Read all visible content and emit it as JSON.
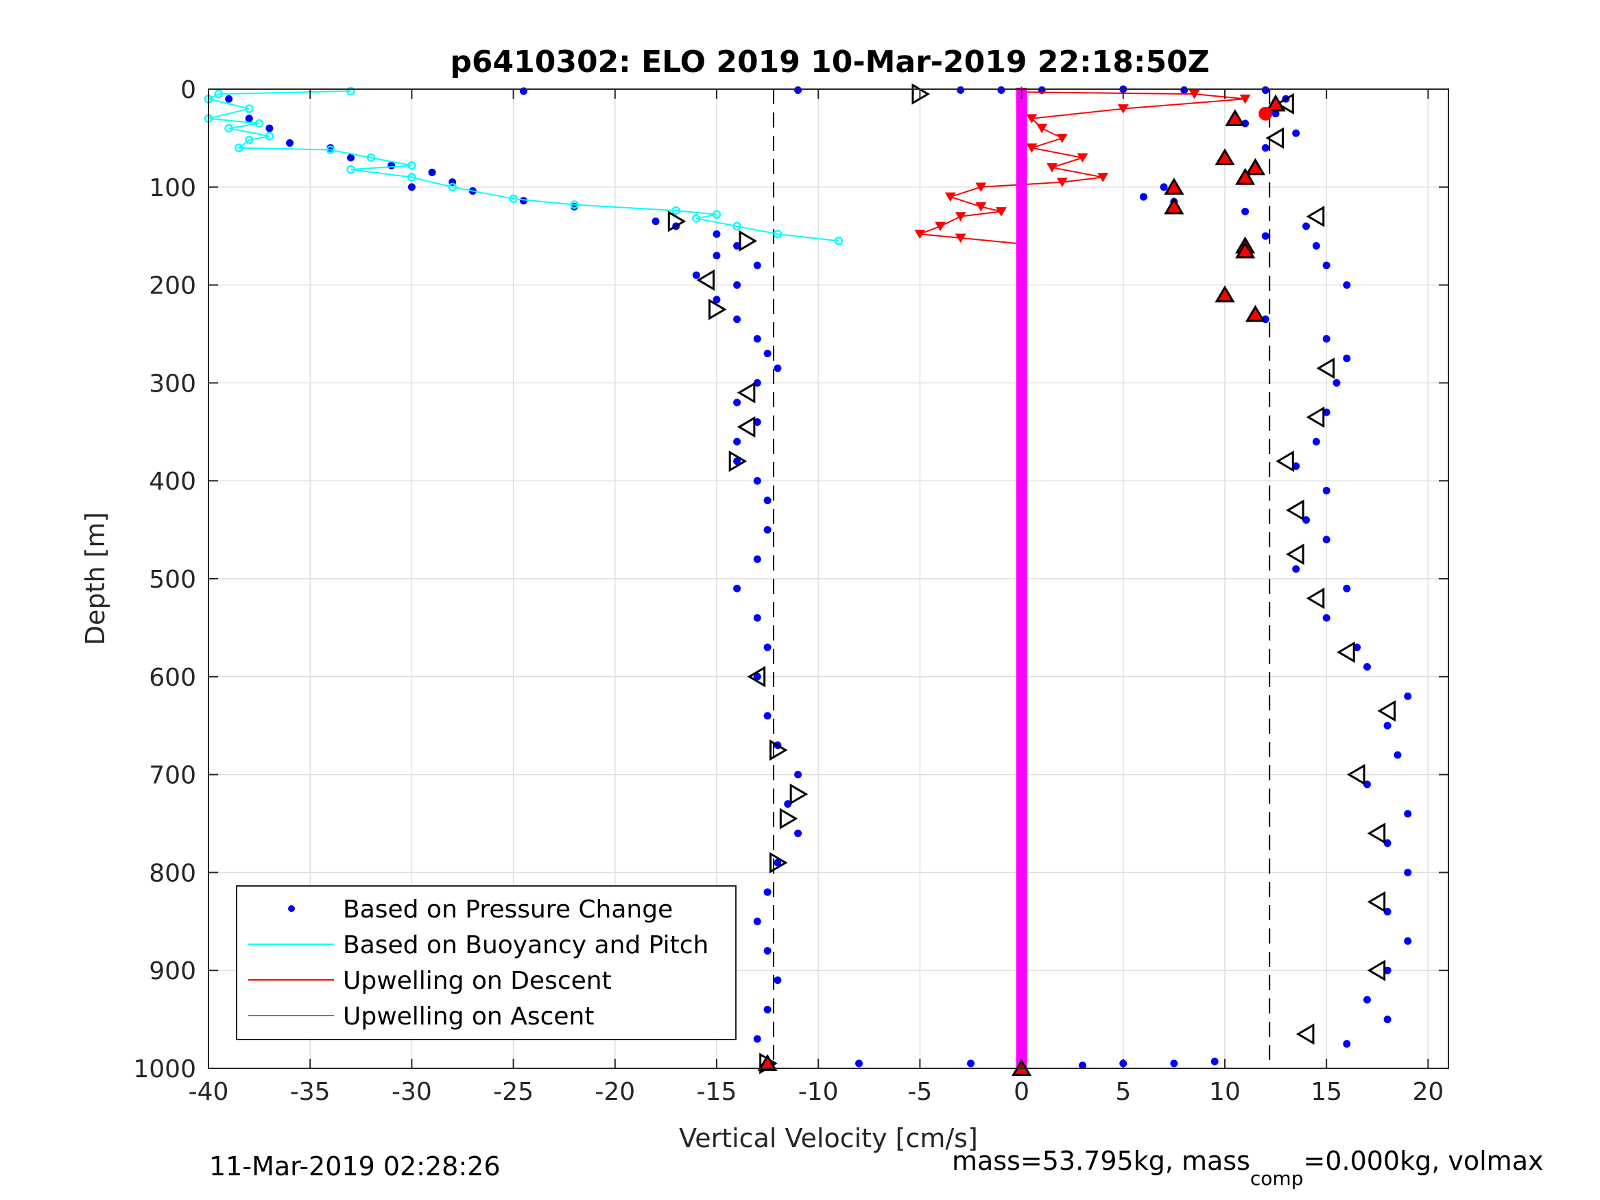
{
  "chart_data": {
    "type": "scatter",
    "title": "p6410302: ELO 2019 10-Mar-2019 22:18:50Z",
    "xlabel": "Vertical Velocity [cm/s]",
    "ylabel": "Depth [m]",
    "xlim": [
      -40,
      21
    ],
    "ylim": [
      0,
      1000
    ],
    "y_reversed": true,
    "grid": true,
    "x_ticks": [
      "-40",
      "-35",
      "-30",
      "-25",
      "-20",
      "-15",
      "-10",
      "-5",
      "0",
      "5",
      "10",
      "15",
      "20"
    ],
    "y_ticks": [
      "0",
      "100",
      "200",
      "300",
      "400",
      "500",
      "600",
      "700",
      "800",
      "900",
      "1000"
    ],
    "legend": {
      "placement": "bottom-left",
      "entries": [
        "Based on Pressure Change",
        "Based on Buoyancy and Pitch",
        "Upwelling on Descent",
        "Upwelling on Ascent"
      ]
    },
    "reference_lines_x": [
      -12.2,
      12.2
    ],
    "colors": {
      "pressure": "#0000ff",
      "buoyancy": "#00ffff",
      "upwelling_descent": "#ff0000",
      "upwelling_ascent": "#ff00ff",
      "marker_fill": "#ff0000"
    },
    "series": [
      {
        "name": "Based on Pressure Change",
        "style": "dots",
        "color": "#0000ff",
        "points": [
          [
            -39,
            10
          ],
          [
            -38,
            30
          ],
          [
            -37,
            40
          ],
          [
            -36,
            55
          ],
          [
            -34,
            60
          ],
          [
            -33,
            70
          ],
          [
            -31,
            78
          ],
          [
            -29,
            85
          ],
          [
            -28,
            95
          ],
          [
            -30,
            100
          ],
          [
            -27,
            104
          ],
          [
            -24.5,
            114
          ],
          [
            -22,
            120
          ],
          [
            -18,
            135
          ],
          [
            -17,
            140
          ],
          [
            -15,
            148
          ],
          [
            -14,
            160
          ],
          [
            -15,
            170
          ],
          [
            -13,
            180
          ],
          [
            -16,
            190
          ],
          [
            -14,
            200
          ],
          [
            -15,
            215
          ],
          [
            -14,
            235
          ],
          [
            -13,
            255
          ],
          [
            -12.5,
            270
          ],
          [
            -12,
            285
          ],
          [
            -13,
            300
          ],
          [
            -14,
            320
          ],
          [
            -13,
            340
          ],
          [
            -14,
            360
          ],
          [
            -14,
            380
          ],
          [
            -13,
            400
          ],
          [
            -12.5,
            420
          ],
          [
            -12.5,
            450
          ],
          [
            -13,
            480
          ],
          [
            -14,
            510
          ],
          [
            -13,
            540
          ],
          [
            -12.5,
            570
          ],
          [
            -13,
            600
          ],
          [
            -12.5,
            640
          ],
          [
            -12,
            670
          ],
          [
            -11,
            700
          ],
          [
            -11.5,
            730
          ],
          [
            -11,
            760
          ],
          [
            -12,
            790
          ],
          [
            -12.5,
            820
          ],
          [
            -13,
            850
          ],
          [
            -12.5,
            880
          ],
          [
            -12,
            910
          ],
          [
            -12.5,
            940
          ],
          [
            -13,
            970
          ],
          [
            -12.5,
            995
          ],
          [
            -24.5,
            2
          ],
          [
            -11,
            1
          ],
          [
            -3,
            1
          ],
          [
            -1,
            1
          ],
          [
            1,
            1
          ],
          [
            5,
            0
          ],
          [
            8,
            1
          ],
          [
            12,
            1
          ],
          [
            -8,
            995
          ],
          [
            -2.5,
            995
          ],
          [
            3,
            997
          ],
          [
            5,
            995
          ],
          [
            7.5,
            995
          ],
          [
            9.5,
            993
          ],
          [
            13,
            10
          ],
          [
            12.5,
            25
          ],
          [
            11,
            35
          ],
          [
            13.5,
            45
          ],
          [
            12,
            60
          ],
          [
            10,
            70
          ],
          [
            11,
            90
          ],
          [
            7,
            100
          ],
          [
            6,
            110
          ],
          [
            7.5,
            115
          ],
          [
            11,
            125
          ],
          [
            12,
            150
          ],
          [
            11,
            165
          ],
          [
            10,
            210
          ],
          [
            12,
            235
          ],
          [
            15,
            255
          ],
          [
            16,
            275
          ],
          [
            15.5,
            300
          ],
          [
            15,
            330
          ],
          [
            14.5,
            360
          ],
          [
            13.5,
            385
          ],
          [
            15,
            410
          ],
          [
            14,
            440
          ],
          [
            15,
            460
          ],
          [
            13.5,
            490
          ],
          [
            16,
            510
          ],
          [
            15,
            540
          ],
          [
            16.5,
            570
          ],
          [
            17,
            590
          ],
          [
            19,
            620
          ],
          [
            18,
            650
          ],
          [
            18.5,
            680
          ],
          [
            17,
            710
          ],
          [
            19,
            740
          ],
          [
            18,
            770
          ],
          [
            19,
            800
          ],
          [
            18,
            840
          ],
          [
            19,
            870
          ],
          [
            18,
            900
          ],
          [
            17,
            930
          ],
          [
            18,
            950
          ],
          [
            16,
            975
          ],
          [
            14,
            140
          ],
          [
            14.5,
            160
          ],
          [
            15,
            180
          ],
          [
            16,
            200
          ]
        ]
      },
      {
        "name": "Based on Buoyancy and Pitch",
        "style": "line-circles",
        "color": "#00ffff",
        "points": [
          [
            -33,
            2
          ],
          [
            -39.5,
            5
          ],
          [
            -40,
            10
          ],
          [
            -38,
            20
          ],
          [
            -40,
            30
          ],
          [
            -37.5,
            35
          ],
          [
            -39,
            40
          ],
          [
            -37,
            48
          ],
          [
            -38,
            52
          ],
          [
            -38.5,
            60
          ],
          [
            -34,
            62
          ],
          [
            -32,
            70
          ],
          [
            -30,
            78
          ],
          [
            -33,
            82
          ],
          [
            -30,
            90
          ],
          [
            -28,
            100
          ],
          [
            -25,
            112
          ],
          [
            -22,
            118
          ],
          [
            -17,
            124
          ],
          [
            -15,
            128
          ],
          [
            -16,
            132
          ],
          [
            -14,
            140
          ],
          [
            -12,
            148
          ],
          [
            -9,
            155
          ]
        ]
      },
      {
        "name": "Upwelling on Descent",
        "style": "line-triangles-down",
        "color": "#ff0000",
        "points": [
          [
            0,
            3
          ],
          [
            8.5,
            5
          ],
          [
            11,
            10
          ],
          [
            5,
            20
          ],
          [
            0.5,
            30
          ],
          [
            1,
            40
          ],
          [
            2,
            50
          ],
          [
            0.5,
            60
          ],
          [
            3,
            70
          ],
          [
            1.5,
            80
          ],
          [
            4,
            90
          ],
          [
            2,
            95
          ],
          [
            -2,
            100
          ],
          [
            -3.5,
            110
          ],
          [
            -2,
            120
          ],
          [
            -1,
            125
          ],
          [
            -3,
            130
          ],
          [
            -4,
            140
          ],
          [
            -5,
            148
          ],
          [
            -3,
            152
          ],
          [
            0,
            158
          ]
        ]
      },
      {
        "name": "Upwelling on Ascent",
        "style": "thick-line",
        "color": "#ff00ff",
        "points": [
          [
            0,
            0
          ],
          [
            0,
            1000
          ]
        ]
      },
      {
        "name": "",
        "style": "open-triangles",
        "color": "#000000",
        "points": [
          [
            -5,
            5,
            "right"
          ],
          [
            13,
            15,
            "left"
          ],
          [
            12.5,
            50,
            "left"
          ],
          [
            -17,
            135,
            "right"
          ],
          [
            -13.5,
            155,
            "right"
          ],
          [
            -15.5,
            195,
            "left"
          ],
          [
            -15,
            225,
            "right"
          ],
          [
            14.5,
            130,
            "left"
          ],
          [
            15,
            285,
            "left"
          ],
          [
            -13.5,
            310,
            "left"
          ],
          [
            -13.5,
            345,
            "left"
          ],
          [
            -14,
            380,
            "right"
          ],
          [
            14.5,
            335,
            "left"
          ],
          [
            13,
            380,
            "left"
          ],
          [
            13.5,
            430,
            "left"
          ],
          [
            13.5,
            475,
            "left"
          ],
          [
            14.5,
            520,
            "left"
          ],
          [
            16,
            575,
            "left"
          ],
          [
            -13,
            600,
            "left"
          ],
          [
            -12,
            675,
            "right"
          ],
          [
            18,
            635,
            "left"
          ],
          [
            16.5,
            700,
            "left"
          ],
          [
            -11,
            720,
            "right"
          ],
          [
            -11.5,
            745,
            "right"
          ],
          [
            17.5,
            760,
            "left"
          ],
          [
            -12,
            790,
            "right"
          ],
          [
            17.5,
            830,
            "left"
          ],
          [
            17.5,
            900,
            "left"
          ],
          [
            14,
            965,
            "left"
          ],
          [
            -12.5,
            995,
            "right"
          ]
        ]
      },
      {
        "name": "",
        "style": "filled-triangles",
        "color": "#ff0000",
        "points": [
          [
            12.5,
            15
          ],
          [
            10.5,
            30
          ],
          [
            10,
            70
          ],
          [
            11.5,
            80
          ],
          [
            11,
            90
          ],
          [
            7.5,
            100
          ],
          [
            7.5,
            120
          ],
          [
            11,
            160
          ],
          [
            11,
            165
          ],
          [
            10,
            210
          ],
          [
            11.5,
            230
          ],
          [
            -12.5,
            995
          ],
          [
            0,
            1000
          ]
        ]
      },
      {
        "name": "",
        "style": "filled-circle",
        "color": "#ff0000",
        "points": [
          [
            12,
            25
          ]
        ]
      }
    ]
  },
  "footer": {
    "timestamp": "11-Mar-2019 02:28:26",
    "mass_text": "mass=53.795kg, mass",
    "mass_sub": "comp",
    "mass_rest": "=0.000kg, volmax"
  }
}
